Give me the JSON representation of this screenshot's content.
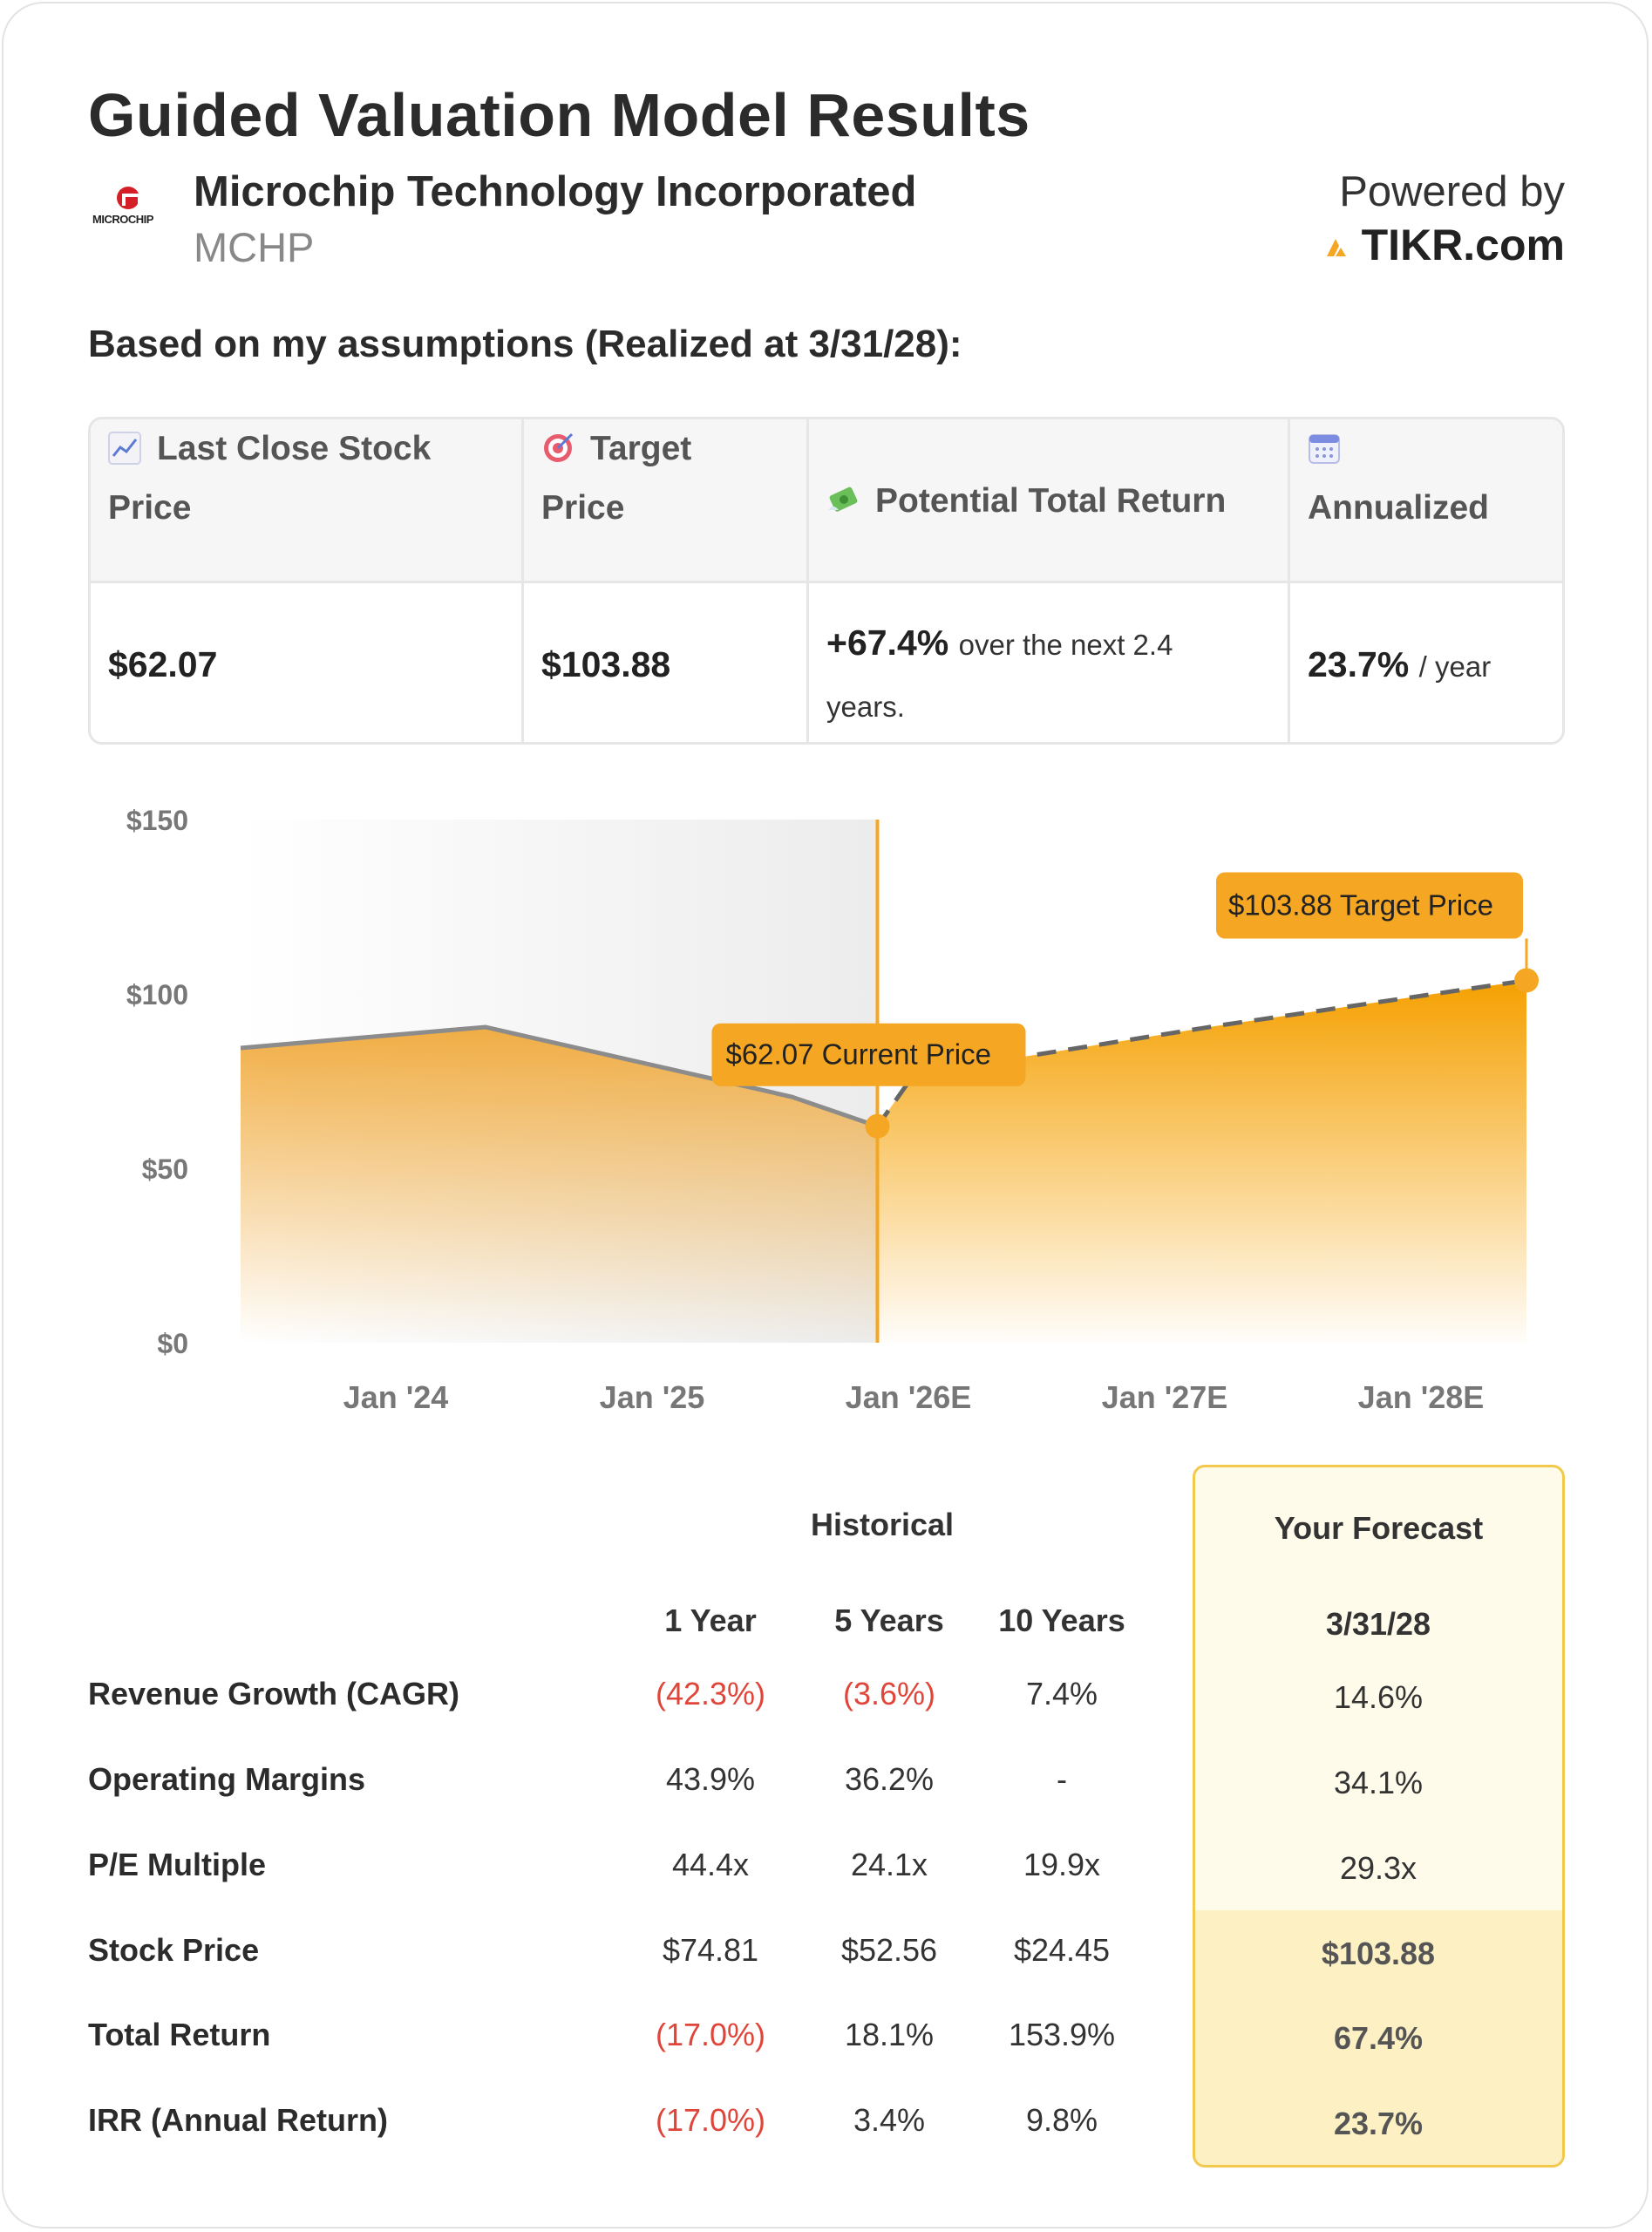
{
  "title": "Guided Valuation Model Results",
  "company": {
    "name": "Microchip Technology Incorporated",
    "ticker": "MCHP",
    "logo_text": "MICROCHIP"
  },
  "powered_by": {
    "label": "Powered by",
    "brand": "TIKR.com"
  },
  "subtitle": "Based on my assumptions (Realized at 3/31/28):",
  "summary": {
    "headers": [
      {
        "icon": "chart-increasing-icon",
        "label_line1": "Last Close Stock",
        "label_line2": "Price"
      },
      {
        "icon": "target-icon",
        "label_line1": "Target",
        "label_line2": "Price"
      },
      {
        "icon": "money-with-wings-icon",
        "label_line1": "Potential Total Return",
        "label_line2": ""
      },
      {
        "icon": "calendar-icon",
        "label_line1": "",
        "label_line2": "Annualized"
      }
    ],
    "last_close": "$62.07",
    "target": "$103.88",
    "total_return_value": "+67.4%",
    "total_return_text_1": "over the next 2.4",
    "total_return_text_2": "years.",
    "annualized_value": "23.7%",
    "annualized_suffix": "/ year"
  },
  "chart_data": {
    "type": "area",
    "y_ticks": [
      "$150",
      "$100",
      "$50",
      "$0"
    ],
    "x_ticks": [
      "Jan '24",
      "Jan '25",
      "Jan '26E",
      "Jan '27E",
      "Jan '28E"
    ],
    "ylim": [
      0,
      150
    ],
    "historical": {
      "x": [
        2023.0,
        2024.0,
        2025.25,
        2025.6
      ],
      "y": [
        84.5,
        90.5,
        70.5,
        62.07
      ]
    },
    "forecast": {
      "x": [
        2025.6,
        2025.75,
        2027.0,
        2028.25
      ],
      "y": [
        62.07,
        77,
        91,
        103.88
      ]
    },
    "current_marker": {
      "x": 2025.6,
      "y": 62.07,
      "label": "$62.07 Current Price"
    },
    "target_marker": {
      "x": 2028.25,
      "y": 103.88,
      "label": "$103.88 Target Price"
    },
    "colors": {
      "accent": "#f5a623",
      "line": "#8c8c8c",
      "dash": "#666666"
    }
  },
  "stats": {
    "group_historical": "Historical",
    "group_forecast": "Your Forecast",
    "columns": [
      "1 Year",
      "5 Years",
      "10 Years",
      "3/31/28"
    ],
    "rows": [
      {
        "label": "Revenue Growth (CAGR)",
        "v1": "(42.3%)",
        "v5": "(3.6%)",
        "v10": "7.4%",
        "f": "14.6%"
      },
      {
        "label": "Operating Margins",
        "v1": "43.9%",
        "v5": "36.2%",
        "v10": "-",
        "f": "34.1%"
      },
      {
        "label": "P/E Multiple",
        "v1": "44.4x",
        "v5": "24.1x",
        "v10": "19.9x",
        "f": "29.3x"
      },
      {
        "label": "Stock Price",
        "v1": "$74.81",
        "v5": "$52.56",
        "v10": "$24.45",
        "f": "$103.88"
      },
      {
        "label": "Total Return",
        "v1": "(17.0%)",
        "v5": "18.1%",
        "v10": "153.9%",
        "f": "67.4%"
      },
      {
        "label": "IRR (Annual Return)",
        "v1": "(17.0%)",
        "v5": "3.4%",
        "v10": "9.8%",
        "f": "23.7%"
      }
    ]
  }
}
